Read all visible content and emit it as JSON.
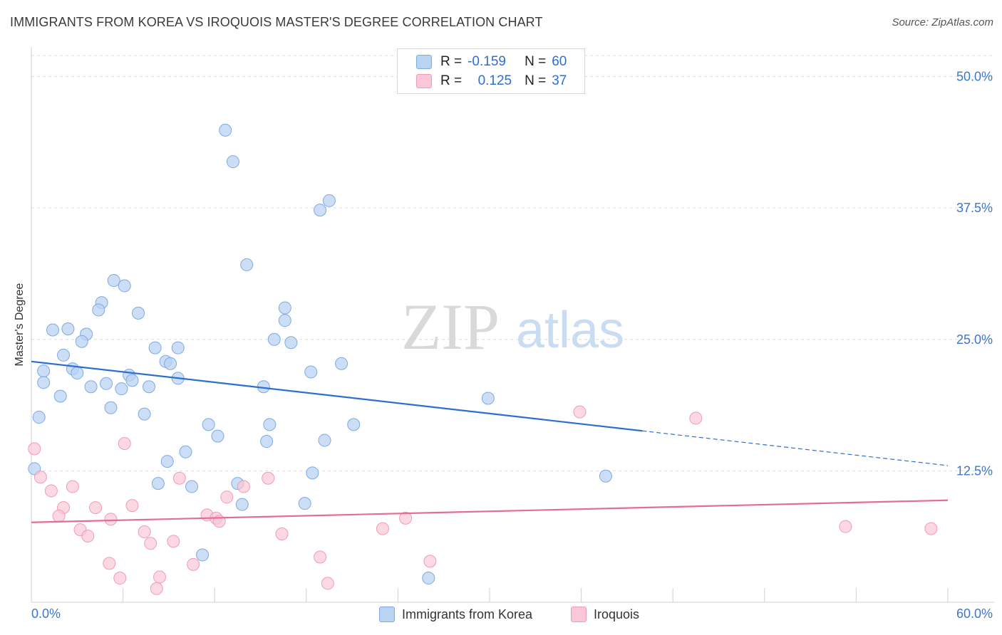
{
  "header": {
    "title": "IMMIGRANTS FROM KOREA VS IROQUOIS MASTER'S DEGREE CORRELATION CHART",
    "source": "Source: ZipAtlas.com"
  },
  "watermark": {
    "zip": "ZIP",
    "atlas": "atlas"
  },
  "legend": {
    "rows": [
      {
        "r_label": "R =",
        "r_value": "-0.159",
        "n_label": "N =",
        "n_value": "60"
      },
      {
        "r_label": "R =",
        "r_value": "0.125",
        "n_label": "N =",
        "n_value": "37"
      }
    ]
  },
  "bottom_legend": {
    "series1": "Immigrants from Korea",
    "series2": "Iroquois"
  },
  "colors": {
    "korea_fill": "#b9d3f3",
    "korea_stroke": "#7eaae2",
    "korea_line": "#2d6fd1",
    "iroquois_fill": "#f9c7d6",
    "iroquois_stroke": "#ef9cb6",
    "iroquois_line": "#e46d95",
    "axis_label": "#3d77c9"
  },
  "chart_data": {
    "type": "scatter",
    "title": "IMMIGRANTS FROM KOREA VS IROQUOIS MASTER'S DEGREE CORRELATION CHART",
    "xlabel": "",
    "ylabel": "Master's Degree",
    "xlim": [
      0,
      60
    ],
    "ylim": [
      0,
      52
    ],
    "x_tick_labels": [
      "0.0%",
      "60.0%"
    ],
    "y_ticks": [
      12.5,
      25.0,
      37.5,
      50.0
    ],
    "y_tick_labels": [
      "12.5%",
      "25.0%",
      "37.5%",
      "50.0%"
    ],
    "series": [
      {
        "name": "Immigrants from Korea",
        "r": -0.159,
        "n": 60,
        "trend": {
          "x0": 0,
          "y0": 22.9,
          "x1": 40,
          "y1": 16.3,
          "dash_x1": 60,
          "dash_y1": 13.0
        },
        "points": [
          [
            12.7,
            44.9
          ],
          [
            13.2,
            41.9
          ],
          [
            19.5,
            38.2
          ],
          [
            18.9,
            37.3
          ],
          [
            14.1,
            32.1
          ],
          [
            5.4,
            30.6
          ],
          [
            6.1,
            30.1
          ],
          [
            4.6,
            28.5
          ],
          [
            4.4,
            27.8
          ],
          [
            7.0,
            27.5
          ],
          [
            16.6,
            28.0
          ],
          [
            16.6,
            26.8
          ],
          [
            1.4,
            25.9
          ],
          [
            2.4,
            26.0
          ],
          [
            3.6,
            25.5
          ],
          [
            3.3,
            24.8
          ],
          [
            15.9,
            25.0
          ],
          [
            17.0,
            24.7
          ],
          [
            8.1,
            24.2
          ],
          [
            9.6,
            24.2
          ],
          [
            2.1,
            23.5
          ],
          [
            20.3,
            22.7
          ],
          [
            8.8,
            22.9
          ],
          [
            9.1,
            22.7
          ],
          [
            2.7,
            22.2
          ],
          [
            3.0,
            21.8
          ],
          [
            6.4,
            21.6
          ],
          [
            6.6,
            21.1
          ],
          [
            9.6,
            21.3
          ],
          [
            0.8,
            22.0
          ],
          [
            0.8,
            20.9
          ],
          [
            4.9,
            20.8
          ],
          [
            5.9,
            20.3
          ],
          [
            3.9,
            20.5
          ],
          [
            7.7,
            20.5
          ],
          [
            18.3,
            21.9
          ],
          [
            15.2,
            20.5
          ],
          [
            1.9,
            19.6
          ],
          [
            5.2,
            18.5
          ],
          [
            29.9,
            19.4
          ],
          [
            7.4,
            17.9
          ],
          [
            0.5,
            17.6
          ],
          [
            11.6,
            16.9
          ],
          [
            15.6,
            16.9
          ],
          [
            21.1,
            16.9
          ],
          [
            12.2,
            15.8
          ],
          [
            15.4,
            15.3
          ],
          [
            19.2,
            15.4
          ],
          [
            10.1,
            14.3
          ],
          [
            8.9,
            13.4
          ],
          [
            0.2,
            12.7
          ],
          [
            18.4,
            12.3
          ],
          [
            37.6,
            12.0
          ],
          [
            8.3,
            11.3
          ],
          [
            10.5,
            11.0
          ],
          [
            13.5,
            11.3
          ],
          [
            13.8,
            9.3
          ],
          [
            17.9,
            9.4
          ],
          [
            11.2,
            4.5
          ],
          [
            26.0,
            2.3
          ]
        ]
      },
      {
        "name": "Iroquois",
        "r": 0.125,
        "n": 37,
        "trend": {
          "x0": 0,
          "y0": 7.6,
          "x1": 60,
          "y1": 9.7
        },
        "points": [
          [
            0.2,
            14.6
          ],
          [
            6.1,
            15.1
          ],
          [
            35.9,
            18.1
          ],
          [
            43.5,
            17.5
          ],
          [
            0.6,
            11.9
          ],
          [
            9.7,
            11.8
          ],
          [
            15.5,
            11.8
          ],
          [
            2.7,
            11.0
          ],
          [
            13.9,
            11.0
          ],
          [
            1.3,
            10.6
          ],
          [
            12.8,
            10.0
          ],
          [
            2.1,
            9.0
          ],
          [
            4.2,
            9.0
          ],
          [
            6.6,
            9.2
          ],
          [
            11.5,
            8.3
          ],
          [
            1.8,
            8.2
          ],
          [
            5.2,
            7.9
          ],
          [
            12.1,
            8.0
          ],
          [
            12.3,
            7.7
          ],
          [
            24.5,
            8.0
          ],
          [
            3.2,
            6.9
          ],
          [
            23.0,
            7.0
          ],
          [
            7.4,
            6.7
          ],
          [
            3.7,
            6.3
          ],
          [
            16.4,
            6.5
          ],
          [
            53.3,
            7.2
          ],
          [
            58.9,
            7.0
          ],
          [
            7.8,
            5.6
          ],
          [
            9.3,
            5.8
          ],
          [
            18.9,
            4.3
          ],
          [
            5.1,
            3.7
          ],
          [
            10.6,
            3.6
          ],
          [
            26.1,
            3.9
          ],
          [
            5.8,
            2.3
          ],
          [
            8.4,
            2.4
          ],
          [
            19.4,
            1.8
          ],
          [
            8.2,
            1.3
          ]
        ]
      }
    ]
  }
}
